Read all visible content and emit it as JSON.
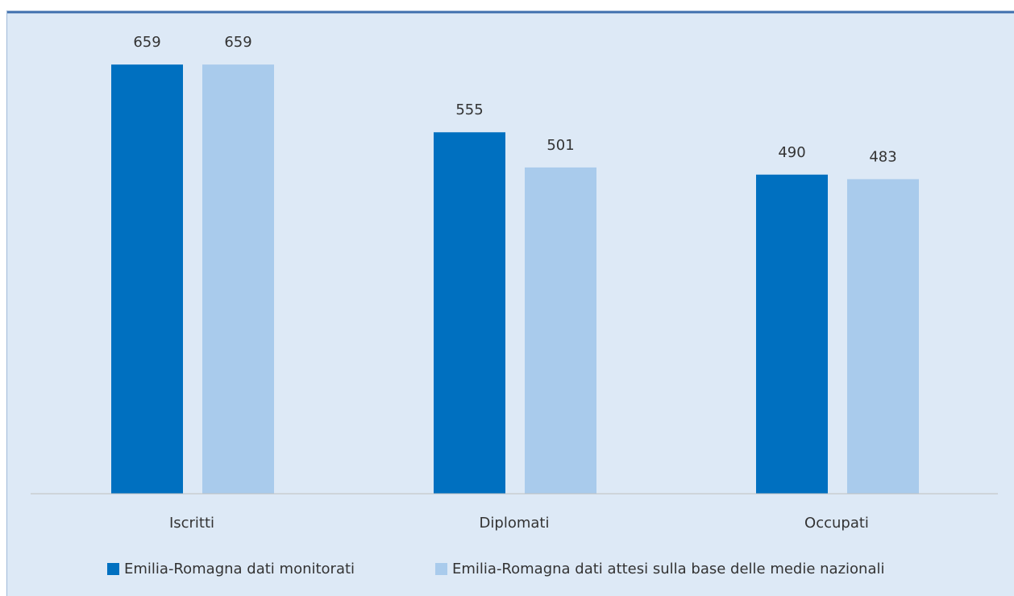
{
  "chart_data": {
    "type": "bar",
    "categories": [
      "Iscritti",
      "Diplomati",
      "Occupati"
    ],
    "series": [
      {
        "name": "Emilia-Romagna dati monitorati",
        "color": "#0070c0",
        "values": [
          659,
          555,
          490
        ]
      },
      {
        "name": "Emilia-Romagna dati attesi sulla base delle medie nazionali",
        "color": "#a9cbec",
        "values": [
          659,
          501,
          483
        ]
      }
    ],
    "ylim": [
      0,
      700
    ],
    "legend": "bottom"
  }
}
